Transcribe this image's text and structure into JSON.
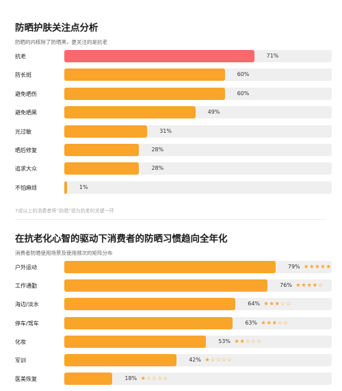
{
  "chart_data": [
    {
      "type": "bar",
      "orientation": "horizontal",
      "title": "防晒护肤关注点分析",
      "subtitle": "防晒的内核除了防晒黑，更关注的是抗老",
      "note": "7成以上的消费者将“防晒”视为抗老的关键一环",
      "categories": [
        "抗老",
        "防长斑",
        "避免晒伤",
        "避免晒黑",
        "光过敏",
        "晒后修复",
        "追求大众",
        "不怕麻烦"
      ],
      "values": [
        71,
        60,
        60,
        49,
        31,
        28,
        28,
        1
      ],
      "value_suffix": "%",
      "xlim": [
        0,
        100
      ],
      "highlight_index": 0,
      "colors": {
        "bar": "#f8a52a",
        "highlight": "#f7696c",
        "track": "#efefef"
      }
    },
    {
      "type": "bar",
      "orientation": "horizontal",
      "title": "在抗老化心智的驱动下消费者的防晒习惯趋向全年化",
      "subtitle": "消费者防晒使用场景及使用频次的矩阵分布",
      "categories": [
        "户外运动",
        "工作通勤",
        "海边/淡水",
        "停车/驾车",
        "化妆",
        "军训",
        "医美恢复"
      ],
      "values": [
        79,
        76,
        64,
        63,
        53,
        42,
        18
      ],
      "value_suffix": "%",
      "stars": [
        5,
        4,
        3,
        3,
        2,
        1,
        1
      ],
      "star_max": 5,
      "xlim": [
        0,
        100
      ],
      "colors": {
        "bar": "#f8a52a",
        "track": "#efefef",
        "star": "#f8a52a"
      }
    }
  ]
}
